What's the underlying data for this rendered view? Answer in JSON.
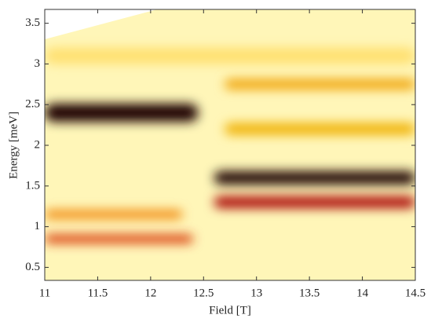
{
  "chart_data": {
    "type": "heatmap",
    "xlabel": "Field [T]",
    "ylabel": "Energy [meV]",
    "xlim": [
      11,
      14.5
    ],
    "ylim": [
      0.34,
      3.67
    ],
    "xticks": [
      11,
      11.5,
      12,
      12.5,
      13,
      13.5,
      14,
      14.5
    ],
    "yticks": [
      0.5,
      1,
      1.5,
      2,
      2.5,
      3,
      3.5
    ],
    "background": "#fff6b8",
    "bands": [
      {
        "x": [
          11,
          12.45
        ],
        "y": 2.4,
        "width": 0.22,
        "color": "#1a0000"
      },
      {
        "x": [
          12.6,
          14.5
        ],
        "y": 1.6,
        "width": 0.16,
        "color": "#1a0000"
      },
      {
        "x": [
          12.6,
          14.5
        ],
        "y": 1.3,
        "width": 0.14,
        "color": "#a80000"
      },
      {
        "x": [
          11,
          12.4
        ],
        "y": 0.85,
        "width": 0.1,
        "color": "#d83000"
      },
      {
        "x": [
          11,
          12.3
        ],
        "y": 1.15,
        "width": 0.1,
        "color": "#f08000"
      },
      {
        "x": [
          12.7,
          14.5
        ],
        "y": 2.75,
        "width": 0.12,
        "color": "#f0a000"
      },
      {
        "x": [
          12.7,
          14.5
        ],
        "y": 2.2,
        "width": 0.14,
        "color": "#f0b000"
      },
      {
        "x": [
          11,
          14.5
        ],
        "y": 3.1,
        "width": 0.2,
        "color": "#ffe070"
      }
    ]
  }
}
